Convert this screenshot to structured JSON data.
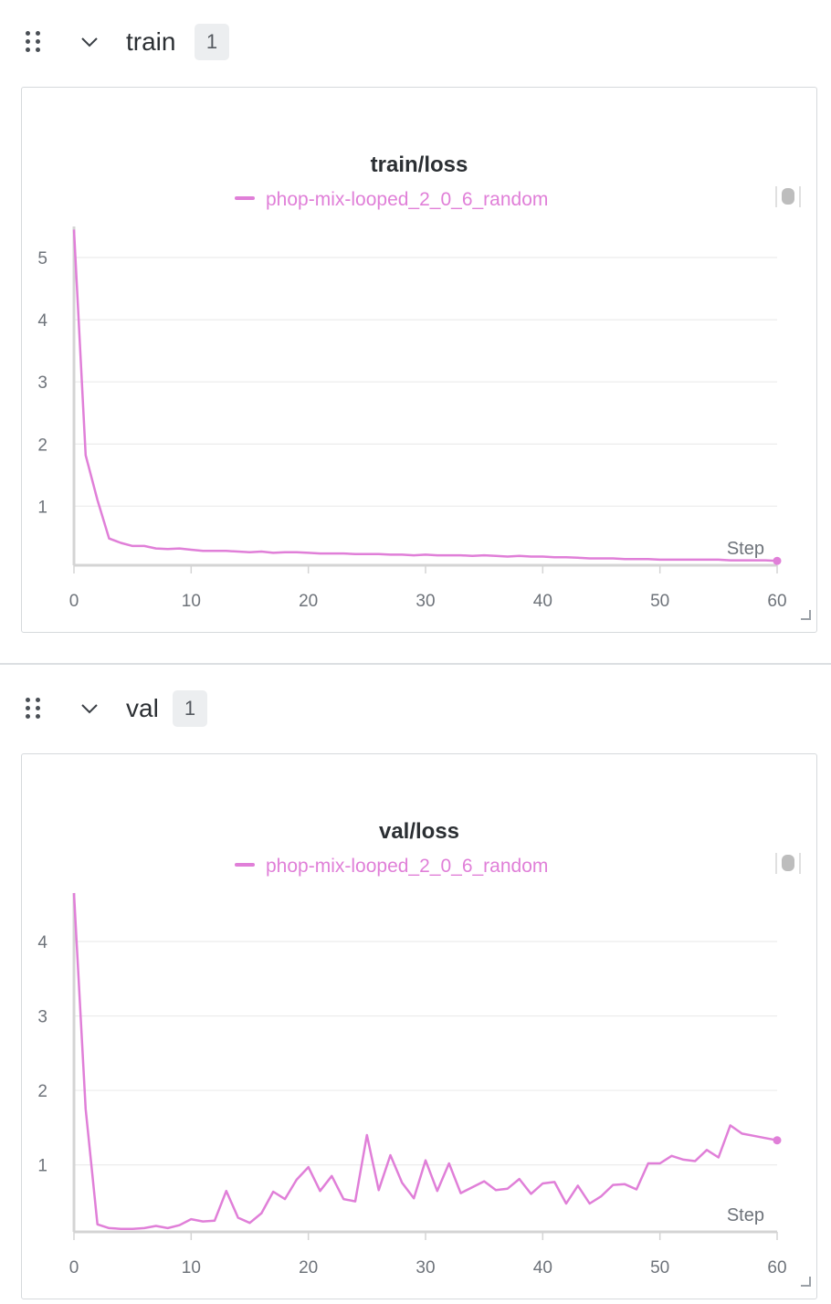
{
  "sections": [
    {
      "title": "train",
      "count": "1"
    },
    {
      "title": "val",
      "count": "1"
    }
  ],
  "colors": {
    "series": "#e07fd8",
    "grid": "#ececec",
    "axis": "#d4d4d4",
    "tick_text": "#6e737a"
  },
  "chart_data": [
    {
      "type": "line",
      "title": "train/loss",
      "xlabel": "Step",
      "ylabel": "",
      "xlim": [
        0,
        60
      ],
      "ylim": [
        0.05,
        5.5
      ],
      "x_ticks": [
        "0",
        "10",
        "20",
        "30",
        "40",
        "50",
        "60"
      ],
      "y_ticks": [
        "1",
        "2",
        "3",
        "4",
        "5"
      ],
      "legend": "top-center",
      "series": [
        {
          "name": "phop-mix-looped_2_0_6_random",
          "x": [
            0,
            1,
            2,
            3,
            4,
            5,
            6,
            7,
            8,
            9,
            10,
            11,
            12,
            13,
            14,
            15,
            16,
            17,
            18,
            19,
            20,
            21,
            22,
            23,
            24,
            25,
            26,
            27,
            28,
            29,
            30,
            31,
            32,
            33,
            34,
            35,
            36,
            37,
            38,
            39,
            40,
            41,
            42,
            43,
            44,
            45,
            46,
            47,
            48,
            49,
            50,
            51,
            52,
            53,
            54,
            55,
            56,
            57,
            58,
            59,
            60
          ],
          "values": [
            5.45,
            1.82,
            1.1,
            0.48,
            0.41,
            0.36,
            0.36,
            0.32,
            0.31,
            0.32,
            0.3,
            0.28,
            0.28,
            0.28,
            0.27,
            0.26,
            0.27,
            0.25,
            0.26,
            0.26,
            0.25,
            0.24,
            0.24,
            0.24,
            0.23,
            0.23,
            0.23,
            0.22,
            0.22,
            0.21,
            0.22,
            0.21,
            0.21,
            0.21,
            0.2,
            0.21,
            0.2,
            0.19,
            0.2,
            0.19,
            0.19,
            0.18,
            0.18,
            0.17,
            0.16,
            0.16,
            0.16,
            0.15,
            0.15,
            0.15,
            0.14,
            0.14,
            0.14,
            0.14,
            0.14,
            0.14,
            0.13,
            0.13,
            0.13,
            0.13,
            0.12
          ]
        }
      ]
    },
    {
      "type": "line",
      "title": "val/loss",
      "xlabel": "Step",
      "ylabel": "",
      "xlim": [
        0,
        60
      ],
      "ylim": [
        0.1,
        4.65
      ],
      "x_ticks": [
        "0",
        "10",
        "20",
        "30",
        "40",
        "50",
        "60"
      ],
      "y_ticks": [
        "1",
        "2",
        "3",
        "4"
      ],
      "legend": "top-center",
      "series": [
        {
          "name": "phop-mix-looped_2_0_6_random",
          "x": [
            0,
            1,
            2,
            3,
            4,
            5,
            6,
            7,
            8,
            9,
            10,
            11,
            12,
            13,
            14,
            15,
            16,
            17,
            18,
            19,
            20,
            21,
            22,
            23,
            24,
            25,
            26,
            27,
            28,
            29,
            30,
            31,
            32,
            33,
            34,
            35,
            36,
            37,
            38,
            39,
            40,
            41,
            42,
            43,
            44,
            45,
            46,
            47,
            48,
            49,
            50,
            51,
            52,
            53,
            54,
            55,
            56,
            57,
            58,
            59,
            60
          ],
          "values": [
            4.65,
            1.75,
            0.2,
            0.15,
            0.14,
            0.14,
            0.15,
            0.18,
            0.15,
            0.19,
            0.27,
            0.24,
            0.25,
            0.65,
            0.29,
            0.22,
            0.35,
            0.64,
            0.54,
            0.8,
            0.97,
            0.65,
            0.85,
            0.54,
            0.51,
            1.4,
            0.66,
            1.13,
            0.76,
            0.55,
            1.06,
            0.65,
            1.02,
            0.62,
            0.7,
            0.78,
            0.66,
            0.68,
            0.81,
            0.61,
            0.75,
            0.77,
            0.48,
            0.72,
            0.48,
            0.58,
            0.73,
            0.74,
            0.67,
            1.02,
            1.02,
            1.12,
            1.07,
            1.05,
            1.2,
            1.1,
            1.53,
            1.42,
            1.39,
            1.36,
            1.33
          ]
        }
      ]
    }
  ]
}
